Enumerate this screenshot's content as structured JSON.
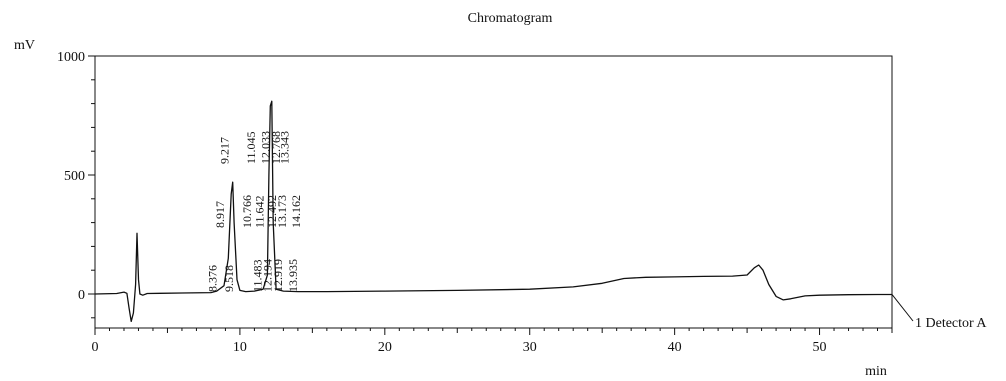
{
  "chart_data": {
    "type": "line",
    "title": "Chromatogram",
    "xlabel": "min",
    "ylabel": "mV",
    "xlim": [
      0,
      55
    ],
    "ylim": [
      -150,
      1000
    ],
    "x_ticks": [
      0,
      10,
      20,
      30,
      40,
      50
    ],
    "y_ticks": [
      0,
      500,
      1000
    ],
    "grid": false,
    "legend": "right",
    "series": [
      {
        "name": "1 Detector A",
        "color": "#111111",
        "x": [
          0,
          1.5,
          2.0,
          2.2,
          2.35,
          2.5,
          2.65,
          2.8,
          2.9,
          3.0,
          3.1,
          3.3,
          3.6,
          4.5,
          6.0,
          8.0,
          8.4,
          8.9,
          9.2,
          9.4,
          9.5,
          9.6,
          9.8,
          10.0,
          10.4,
          11.0,
          11.6,
          11.9,
          12.0,
          12.1,
          12.2,
          12.3,
          12.5,
          13.0,
          14.0,
          16.0,
          20.0,
          25.0,
          30.0,
          33.0,
          35.0,
          36.5,
          38.0,
          40.0,
          42.0,
          44.0,
          45.0,
          45.5,
          45.8,
          46.1,
          46.5,
          47.0,
          47.5,
          48.0,
          49.0,
          50.0,
          52.0,
          54.0,
          55.0
        ],
        "y": [
          0,
          2,
          8,
          3,
          -60,
          -115,
          -80,
          40,
          255,
          60,
          0,
          -5,
          2,
          3,
          4,
          6,
          12,
          35,
          150,
          420,
          470,
          300,
          60,
          15,
          10,
          12,
          20,
          80,
          500,
          790,
          810,
          300,
          20,
          12,
          10,
          10,
          12,
          15,
          20,
          30,
          45,
          65,
          70,
          72,
          74,
          75,
          80,
          110,
          122,
          100,
          40,
          -10,
          -25,
          -20,
          -8,
          -5,
          -3,
          -2,
          -2
        ]
      }
    ],
    "peak_labels": [
      {
        "x": 8.376,
        "text": "8.376"
      },
      {
        "x": 8.917,
        "text": "8.917"
      },
      {
        "x": 9.217,
        "text": "9.217"
      },
      {
        "x": 9.518,
        "text": "9.518"
      },
      {
        "x": 10.766,
        "text": "10.766"
      },
      {
        "x": 11.045,
        "text": "11.045"
      },
      {
        "x": 11.483,
        "text": "11.483"
      },
      {
        "x": 11.642,
        "text": "11.642"
      },
      {
        "x": 12.033,
        "text": "12.033"
      },
      {
        "x": 12.194,
        "text": "12.194"
      },
      {
        "x": 12.492,
        "text": "12.492"
      },
      {
        "x": 12.768,
        "text": "12.768"
      },
      {
        "x": 12.919,
        "text": "12.919"
      },
      {
        "x": 13.173,
        "text": "13.173"
      },
      {
        "x": 13.343,
        "text": "13.343"
      },
      {
        "x": 13.935,
        "text": "13.935"
      },
      {
        "x": 14.162,
        "text": "14.162"
      }
    ]
  }
}
